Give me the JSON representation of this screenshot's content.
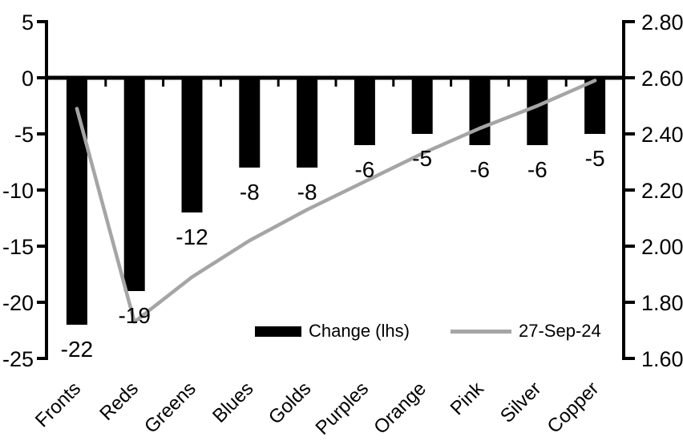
{
  "chart_data": {
    "type": "bar",
    "subtype": "combo-bar-line",
    "background": "#ffffff",
    "categories": [
      "Fronts",
      "Reds",
      "Greens",
      "Blues",
      "Golds",
      "Purples",
      "Orange",
      "Pink",
      "Silver",
      "Copper"
    ],
    "series": [
      {
        "name": "Change (lhs)",
        "type": "bar",
        "axis": "left",
        "color": "#000000",
        "values": [
          -22,
          -19,
          -12,
          -8,
          -8,
          -6,
          -5,
          -6,
          -6,
          -5
        ],
        "data_labels": [
          "-22",
          "-19",
          "-12",
          "-8",
          "-8",
          "-6",
          "-5",
          "-6",
          "-6",
          "-5"
        ]
      },
      {
        "name": "27-Sep-24",
        "type": "line",
        "axis": "right",
        "color": "#a5a5a5",
        "values": [
          2.49,
          1.73,
          1.89,
          2.02,
          2.13,
          2.23,
          2.33,
          2.42,
          2.5,
          2.59
        ]
      }
    ],
    "left_axis": {
      "min": -25,
      "max": 5,
      "tick_values": [
        5,
        0,
        -5,
        -10,
        -15,
        -20,
        -25
      ],
      "tick_labels": [
        "5",
        "0",
        "-5",
        "-10",
        "-15",
        "-20",
        "-25"
      ]
    },
    "right_axis": {
      "min": 1.6,
      "max": 2.8,
      "tick_values": [
        2.8,
        2.6,
        2.4,
        2.2,
        2.0,
        1.8,
        1.6
      ],
      "tick_labels": [
        "2.80",
        "2.60",
        "2.40",
        "2.20",
        "2.00",
        "1.80",
        "1.60"
      ]
    },
    "grid": false,
    "legend_position": "bottom-inside"
  },
  "legend": {
    "items": [
      {
        "label": "Change (lhs)",
        "swatch": "bar",
        "color": "#000000"
      },
      {
        "label": "27-Sep-24",
        "swatch": "line",
        "color": "#a5a5a5"
      }
    ]
  }
}
